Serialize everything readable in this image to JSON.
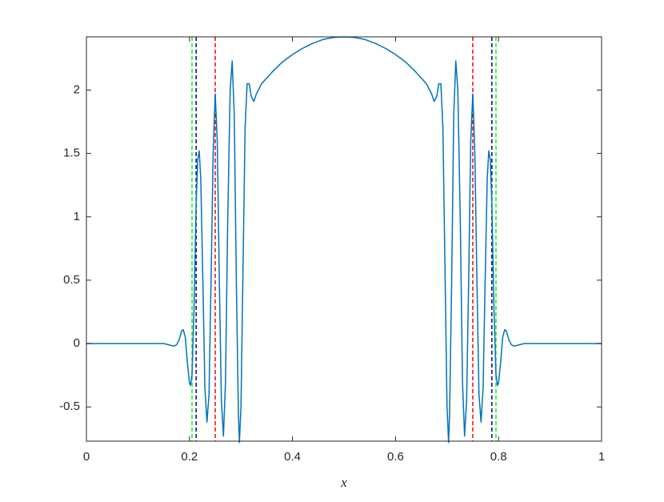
{
  "chart_data": {
    "type": "line",
    "x_label": "x",
    "xlim": [
      0,
      1
    ],
    "ylim": [
      -0.77,
      2.42
    ],
    "xticks": [
      0,
      0.2,
      0.4,
      0.6,
      0.8,
      1
    ],
    "yticks": [
      -0.5,
      0,
      0.5,
      1,
      1.5,
      2
    ],
    "grid": false,
    "series": [
      {
        "color": "#0072bd",
        "x": [
          0,
          0.1,
          0.15,
          0.16,
          0.17,
          0.175,
          0.18,
          0.185,
          0.188,
          0.192,
          0.196,
          0.2,
          0.202,
          0.205,
          0.209,
          0.213,
          0.216,
          0.219,
          0.222,
          0.226,
          0.23,
          0.234,
          0.238,
          0.242,
          0.246,
          0.25,
          0.254,
          0.258,
          0.262,
          0.266,
          0.27,
          0.274,
          0.279,
          0.283,
          0.287,
          0.291,
          0.295,
          0.297,
          0.3,
          0.304,
          0.308,
          0.312,
          0.316,
          0.32,
          0.325,
          0.33,
          0.34,
          0.36,
          0.38,
          0.4,
          0.42,
          0.44,
          0.46,
          0.48,
          0.5,
          0.52,
          0.54,
          0.56,
          0.58,
          0.6,
          0.62,
          0.64,
          0.66,
          0.67,
          0.675,
          0.68,
          0.684,
          0.688,
          0.692,
          0.696,
          0.7,
          0.703,
          0.705,
          0.709,
          0.713,
          0.717,
          0.721,
          0.726,
          0.73,
          0.734,
          0.738,
          0.742,
          0.746,
          0.75,
          0.754,
          0.758,
          0.762,
          0.766,
          0.77,
          0.774,
          0.778,
          0.781,
          0.784,
          0.787,
          0.791,
          0.795,
          0.798,
          0.8,
          0.804,
          0.808,
          0.812,
          0.815,
          0.82,
          0.825,
          0.83,
          0.84,
          0.85,
          0.9,
          1
        ],
        "values": [
          0,
          0,
          0,
          -0.01,
          -0.02,
          -0.01,
          0.03,
          0.1,
          0.11,
          0.05,
          -0.15,
          -0.31,
          -0.33,
          -0.25,
          0.3,
          1.1,
          1.45,
          1.52,
          1.3,
          0.5,
          -0.35,
          -0.62,
          -0.4,
          0.5,
          1.5,
          1.97,
          1.6,
          0.5,
          -0.45,
          -0.73,
          -0.3,
          0.9,
          2.0,
          2.23,
          1.8,
          0.5,
          -0.55,
          -0.78,
          -0.5,
          0.6,
          1.7,
          2.05,
          2.05,
          1.95,
          1.91,
          1.97,
          2.05,
          2.14,
          2.22,
          2.28,
          2.33,
          2.37,
          2.4,
          2.415,
          2.42,
          2.415,
          2.4,
          2.37,
          2.33,
          2.28,
          2.22,
          2.14,
          2.05,
          1.97,
          1.91,
          1.95,
          2.05,
          2.05,
          1.7,
          0.6,
          -0.5,
          -0.78,
          -0.55,
          0.5,
          1.8,
          2.23,
          2.0,
          0.9,
          -0.3,
          -0.73,
          -0.45,
          0.5,
          1.6,
          1.97,
          1.5,
          0.5,
          -0.4,
          -0.62,
          -0.35,
          0.5,
          1.3,
          1.52,
          1.45,
          1.1,
          0.3,
          -0.25,
          -0.33,
          -0.31,
          -0.15,
          0.05,
          0.11,
          0.1,
          0.03,
          -0.01,
          -0.02,
          -0.01,
          0,
          0,
          0
        ]
      }
    ],
    "vlines": [
      {
        "x": 0.205,
        "color": "#00ff00"
      },
      {
        "x": 0.213,
        "color": "#0000a0"
      },
      {
        "x": 0.25,
        "color": "#ff0000"
      },
      {
        "x": 0.75,
        "color": "#ff0000"
      },
      {
        "x": 0.787,
        "color": "#0000a0"
      },
      {
        "x": 0.795,
        "color": "#00ff00"
      }
    ]
  }
}
